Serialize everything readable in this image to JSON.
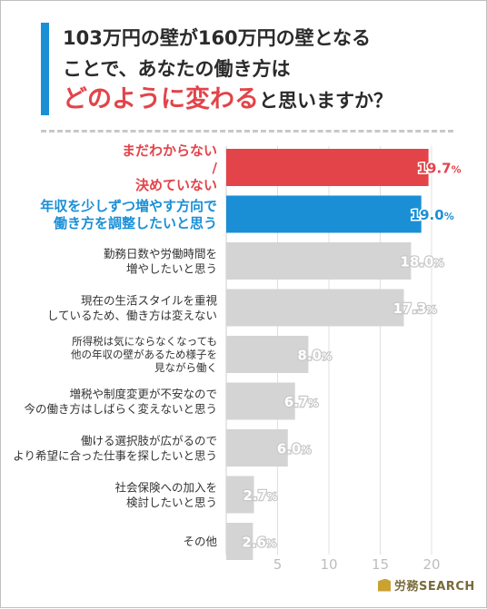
{
  "title": {
    "line1": "103万円の壁が160万円の壁となる",
    "line2": "ことで、あなたの働き方は",
    "line3_highlight": "どのように変わる",
    "line3_rest": "と思いますか？"
  },
  "chart_data": {
    "type": "bar",
    "orientation": "horizontal",
    "categories": [
      "まだわからない / 決めていない",
      "年収を少しずつ増やす方向で 働き方を調整したいと思う",
      "勤務日数や労働時間を 増やしたいと思う",
      "現在の生活スタイルを重視 しているため、働き方は変えない",
      "所得税は気にならなくなっても 他の年収の壁があるため様子を 見ながら働く",
      "増税や制度変更が不安なので 今の働き方はしばらく変えないと思う",
      "働ける選択肢が広がるので より希望に合った仕事を探したいと思う",
      "社会保険への加入を 検討したいと思う",
      "その他"
    ],
    "values": [
      19.7,
      19.0,
      18.0,
      17.3,
      8.0,
      6.7,
      6.0,
      2.7,
      2.6
    ],
    "value_labels": [
      "19.7%",
      "19.0%",
      "18.0%",
      "17.3%",
      "8.0%",
      "6.7%",
      "6.0%",
      "2.7%",
      "2.6%"
    ],
    "xlim": [
      0,
      20
    ],
    "xticks": [
      5,
      10,
      15,
      20
    ],
    "grid": true,
    "colors": {
      "highlight_red": "#e2444a",
      "highlight_blue": "#1a8fd6",
      "default": "#d4d4d4",
      "grid": "#e0e0e0"
    },
    "category_colors": [
      "#e2444a",
      "#1a8fd6",
      "#d4d4d4",
      "#d4d4d4",
      "#d4d4d4",
      "#d4d4d4",
      "#d4d4d4",
      "#d4d4d4",
      "#d4d4d4"
    ],
    "label_colors": [
      "#e2444a",
      "#1a8fd6",
      "#333333",
      "#333333",
      "#333333",
      "#333333",
      "#333333",
      "#333333",
      "#333333"
    ]
  },
  "logo": {
    "text": "労務SEARCH"
  }
}
